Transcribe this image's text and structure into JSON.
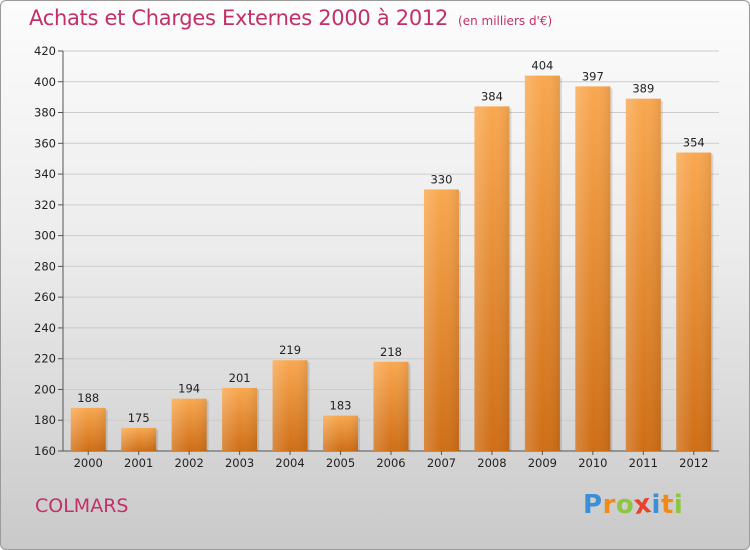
{
  "header": {
    "title": "Achats et Charges Externes 2000 à 2012",
    "subtitle": "(en milliers d'€)"
  },
  "footer": {
    "city": "COLMARS",
    "logo_text": "Proxiti",
    "logo_letters": [
      {
        "ch": "P",
        "color": "#3a8fd8"
      },
      {
        "ch": "r",
        "color": "#f08a1c"
      },
      {
        "ch": "o",
        "color": "#8dc63f"
      },
      {
        "ch": "x",
        "color": "#e8412c"
      },
      {
        "ch": "i",
        "color": "#3a8fd8"
      },
      {
        "ch": "t",
        "color": "#f08a1c"
      },
      {
        "ch": "i",
        "color": "#8dc63f"
      }
    ]
  },
  "colors": {
    "title": "#c2306a",
    "bar_light": "#f7a54e",
    "bar_dark": "#cf6e16",
    "grid": "#c8c8c8"
  },
  "chart_data": {
    "type": "bar",
    "title": "Achats et Charges Externes 2000 à 2012",
    "subtitle": "(en milliers d'€)",
    "xlabel": "",
    "ylabel": "",
    "categories": [
      "2000",
      "2001",
      "2002",
      "2003",
      "2004",
      "2005",
      "2006",
      "2007",
      "2008",
      "2009",
      "2010",
      "2011",
      "2012"
    ],
    "values": [
      188,
      175,
      194,
      201,
      219,
      183,
      218,
      330,
      384,
      404,
      397,
      389,
      354
    ],
    "ylim": [
      160,
      420
    ],
    "yticks": [
      160,
      180,
      200,
      220,
      240,
      260,
      280,
      300,
      320,
      340,
      360,
      380,
      400,
      420
    ],
    "grid": true,
    "legend": "none",
    "data_labels": true
  }
}
